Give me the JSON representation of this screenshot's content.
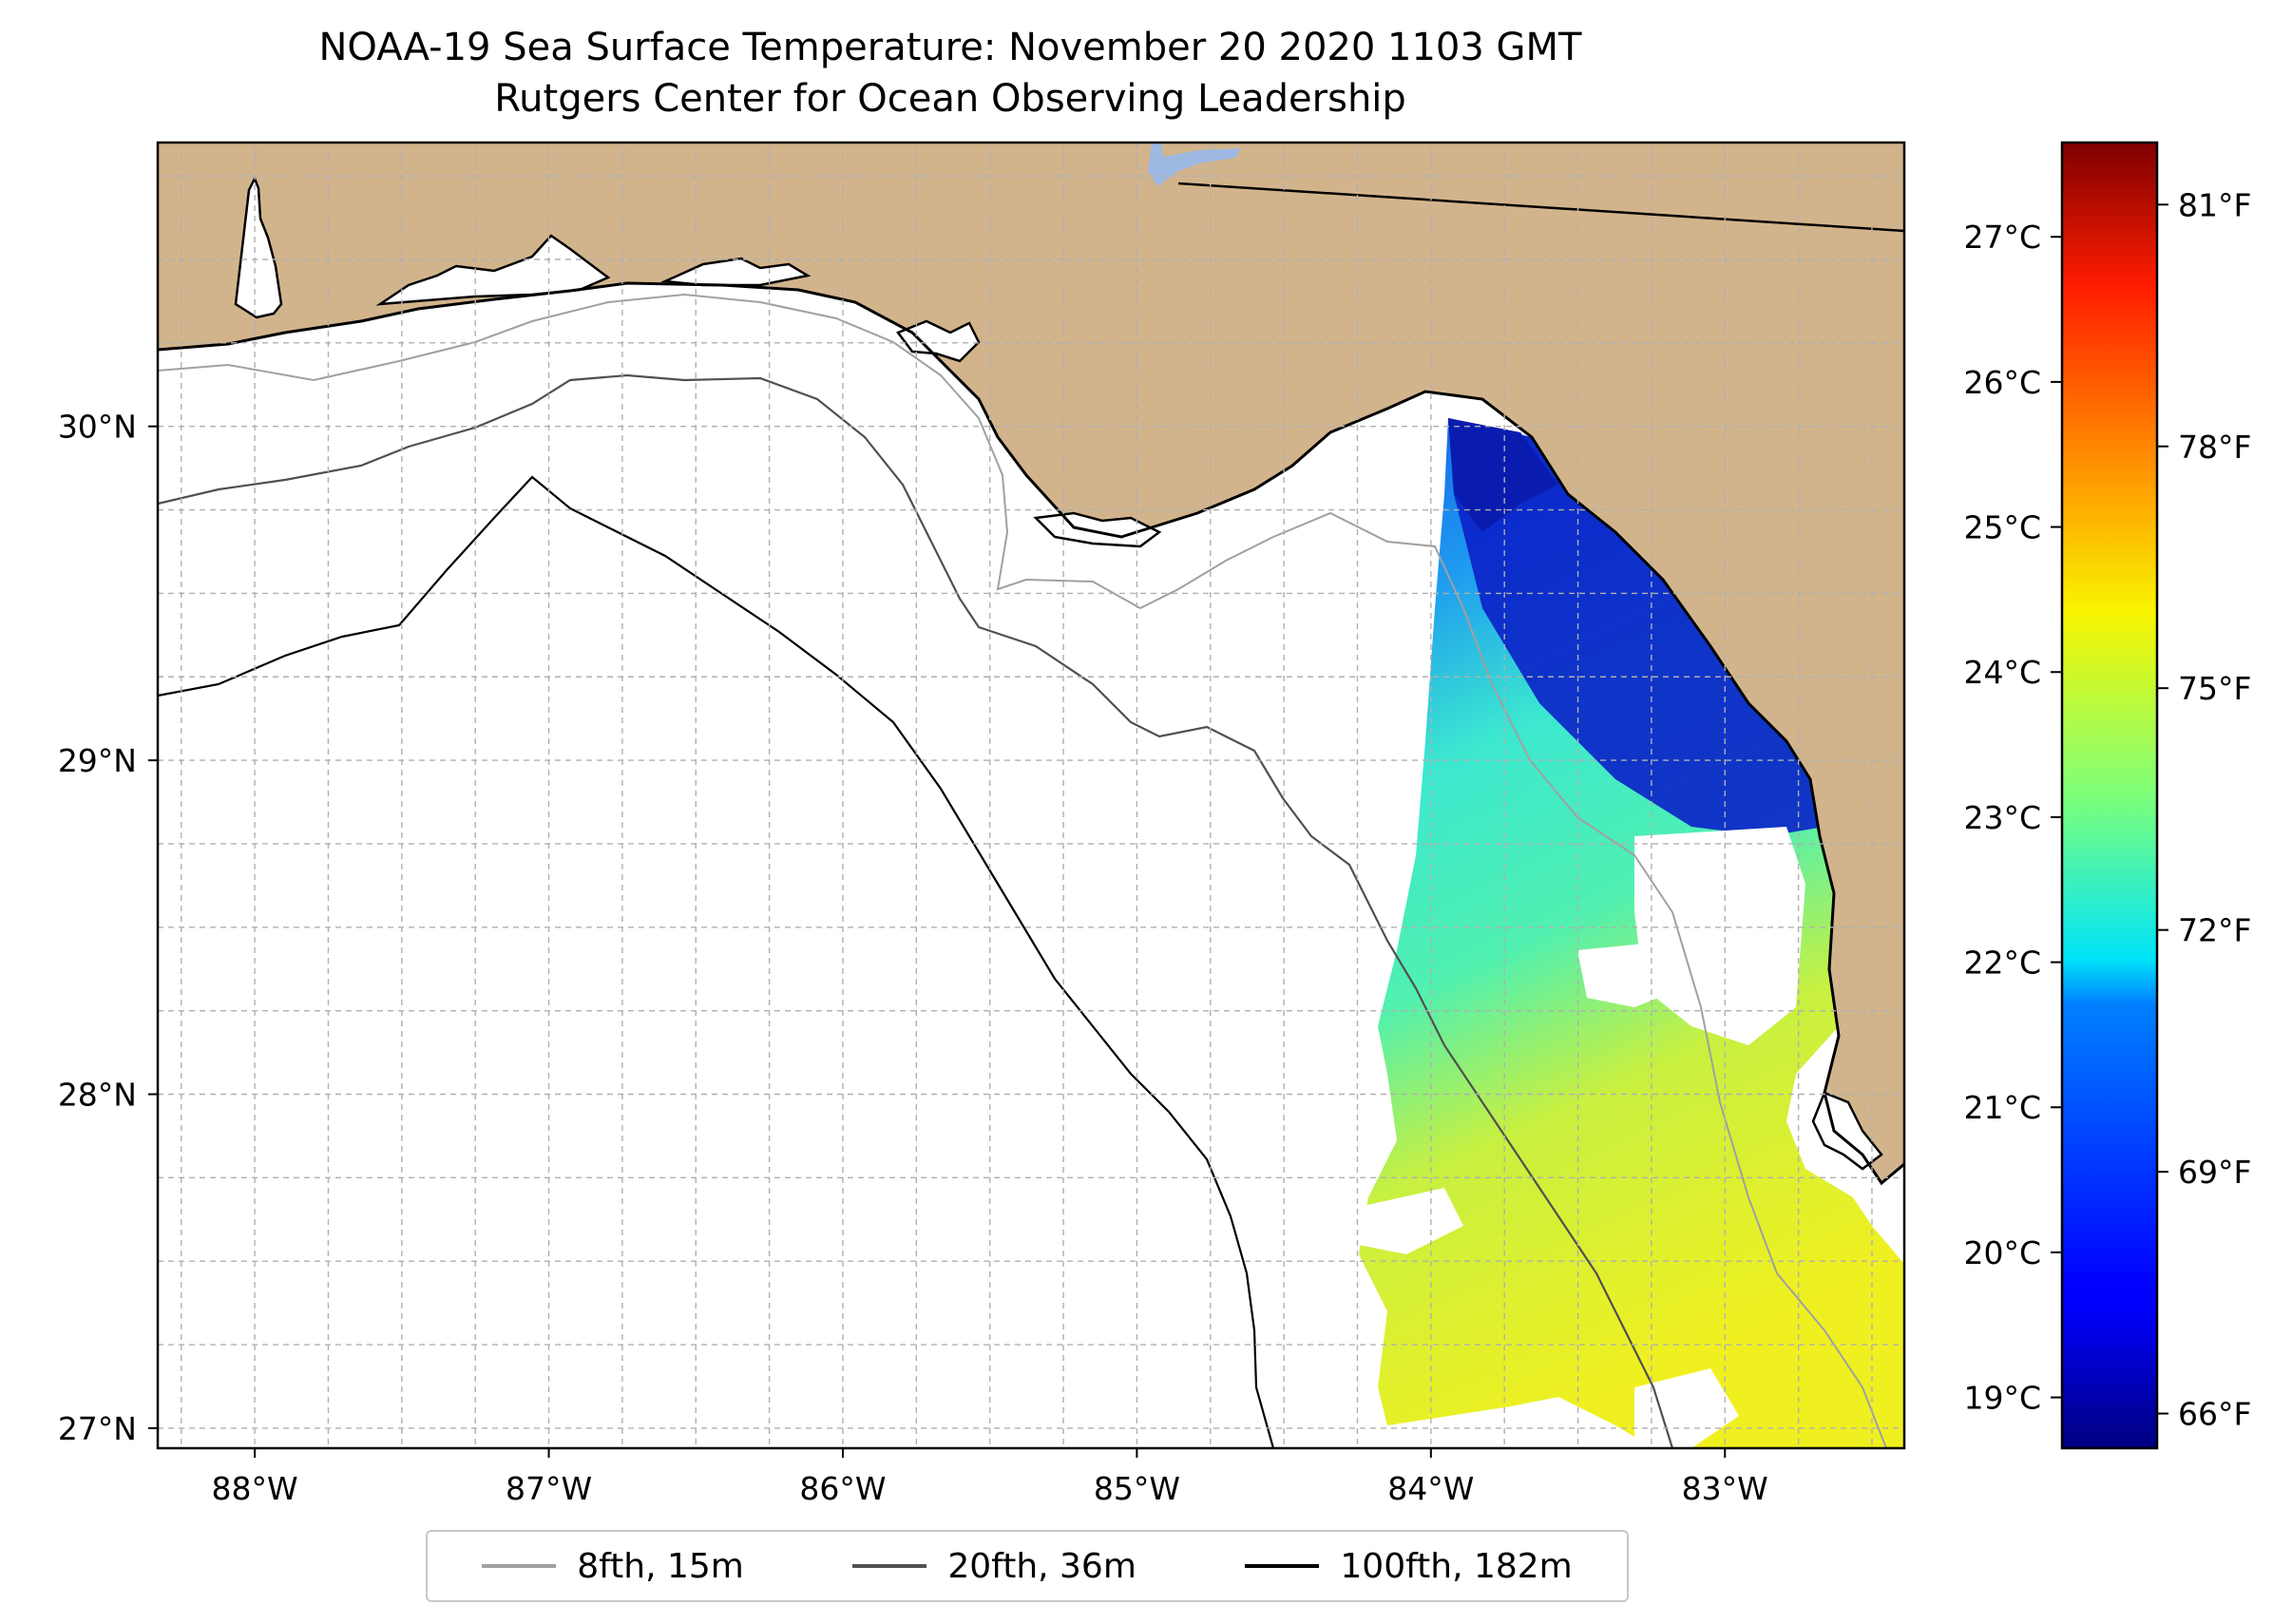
{
  "title": {
    "line1": "NOAA-19 Sea Surface Temperature: November 20 2020 1103 GMT",
    "line2": "Rutgers Center for Ocean Observing Leadership"
  },
  "map": {
    "extent": {
      "lon_min": -88.33,
      "lon_max": -82.39,
      "lat_min": 26.94,
      "lat_max": 30.85
    },
    "land_color": "#D2B48C",
    "no_data_color": "#FFFFFF",
    "lake_color": "#9DB9E2",
    "grid": true,
    "lon_ticks": [
      {
        "lon": -88,
        "label": "88°W"
      },
      {
        "lon": -87,
        "label": "87°W"
      },
      {
        "lon": -86,
        "label": "86°W"
      },
      {
        "lon": -85,
        "label": "85°W"
      },
      {
        "lon": -84,
        "label": "84°W"
      },
      {
        "lon": -83,
        "label": "83°W"
      }
    ],
    "lat_ticks": [
      {
        "lat": 27,
        "label": "27°N"
      },
      {
        "lat": 28,
        "label": "28°N"
      },
      {
        "lat": 29,
        "label": "29°N"
      },
      {
        "lat": 30,
        "label": "30°N"
      }
    ]
  },
  "colorbar": {
    "colormap": "jet",
    "celsius_ticks": [
      {
        "value": 19,
        "label": "19°C"
      },
      {
        "value": 20,
        "label": "20°C"
      },
      {
        "value": 21,
        "label": "21°C"
      },
      {
        "value": 22,
        "label": "22°C"
      },
      {
        "value": 23,
        "label": "23°C"
      },
      {
        "value": 24,
        "label": "24°C"
      },
      {
        "value": 25,
        "label": "25°C"
      },
      {
        "value": 26,
        "label": "26°C"
      },
      {
        "value": 27,
        "label": "27°C"
      }
    ],
    "fahrenheit_ticks": [
      {
        "value": 66,
        "label": "66°F"
      },
      {
        "value": 69,
        "label": "69°F"
      },
      {
        "value": 72,
        "label": "72°F"
      },
      {
        "value": 75,
        "label": "75°F"
      },
      {
        "value": 78,
        "label": "78°F"
      },
      {
        "value": 81,
        "label": "81°F"
      }
    ]
  },
  "legend": [
    {
      "label": "8fth, 15m",
      "color": "#A0A0A0"
    },
    {
      "label": "20fth, 36m",
      "color": "#505050"
    },
    {
      "label": "100fth, 182m",
      "color": "#000000"
    }
  ]
}
